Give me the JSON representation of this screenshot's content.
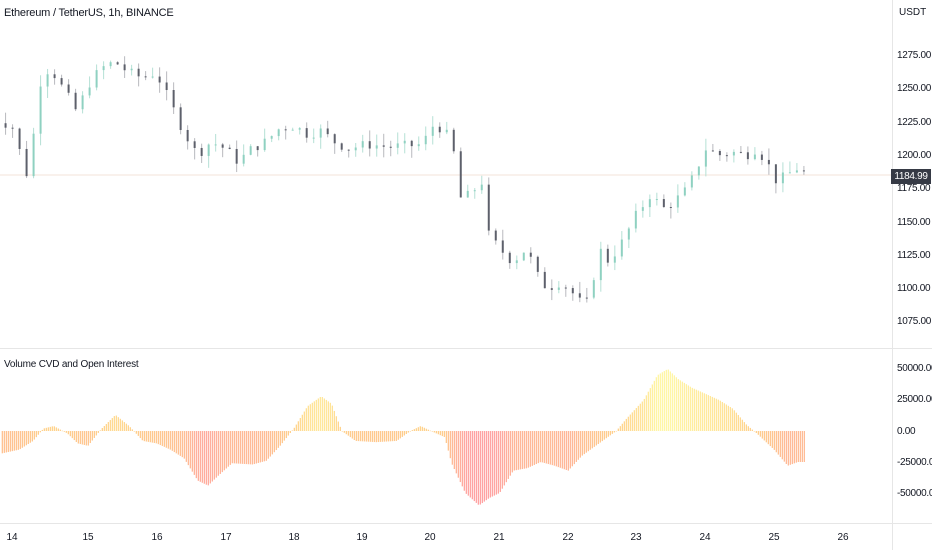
{
  "header": {
    "title": "Ethereum / TetherUS, 1h, BINANCE",
    "currency": "USDT"
  },
  "price_axis": {
    "ticks": [
      "1275.00",
      "1250.00",
      "1225.00",
      "1200.00",
      "1175.00",
      "1150.00",
      "1125.00",
      "1100.00",
      "1075.00"
    ],
    "current_price": "1184.99"
  },
  "indicator": {
    "title": "Volume CVD and Open Interest",
    "ticks": [
      "50000.00",
      "25000.00",
      "0.00",
      "-25000.00",
      "-50000.00"
    ]
  },
  "time_axis": {
    "labels": [
      "14",
      "15",
      "16",
      "17",
      "18",
      "19",
      "20",
      "21",
      "22",
      "23",
      "24",
      "25",
      "26"
    ]
  },
  "colors": {
    "up_candle": "#8fd1c1",
    "down_candle": "#5d606b",
    "hist_positive": "#fff59d",
    "hist_mid": "#ffcc80",
    "hist_negative": "#ff9a9a",
    "price_tag_bg": "#363a45"
  },
  "chart_data": [
    {
      "type": "candlestick",
      "title": "Ethereum / TetherUS, 1h, BINANCE",
      "ylabel": "USDT",
      "ylim": [
        1062,
        1300
      ],
      "x_labels": [
        "14",
        "15",
        "16",
        "17",
        "18",
        "19",
        "20",
        "21",
        "22",
        "23",
        "24",
        "25",
        "26"
      ],
      "last_price": 1184.99,
      "close_path": [
        [
          13.6,
          1230
        ],
        [
          14.0,
          1222
        ],
        [
          14.1,
          1205
        ],
        [
          14.25,
          1180
        ],
        [
          14.35,
          1235
        ],
        [
          14.45,
          1265
        ],
        [
          14.6,
          1262
        ],
        [
          14.8,
          1245
        ],
        [
          14.95,
          1232
        ],
        [
          15.1,
          1252
        ],
        [
          15.3,
          1265
        ],
        [
          15.5,
          1270
        ],
        [
          15.7,
          1262
        ],
        [
          15.9,
          1258
        ],
        [
          16.1,
          1262
        ],
        [
          16.3,
          1240
        ],
        [
          16.5,
          1218
        ],
        [
          16.7,
          1200
        ],
        [
          16.9,
          1210
        ],
        [
          17.1,
          1205
        ],
        [
          17.3,
          1195
        ],
        [
          17.5,
          1205
        ],
        [
          17.7,
          1210
        ],
        [
          17.9,
          1220
        ],
        [
          18.1,
          1222
        ],
        [
          18.3,
          1216
        ],
        [
          18.5,
          1218
        ],
        [
          18.7,
          1210
        ],
        [
          18.9,
          1205
        ],
        [
          19.2,
          1208
        ],
        [
          19.5,
          1206
        ],
        [
          19.8,
          1207
        ],
        [
          20.0,
          1208
        ],
        [
          20.1,
          1222
        ],
        [
          20.3,
          1220
        ],
        [
          20.45,
          1200
        ],
        [
          20.55,
          1165
        ],
        [
          20.7,
          1172
        ],
        [
          20.85,
          1180
        ],
        [
          20.95,
          1140
        ],
        [
          21.1,
          1130
        ],
        [
          21.3,
          1120
        ],
        [
          21.5,
          1130
        ],
        [
          21.65,
          1110
        ],
        [
          21.8,
          1100
        ],
        [
          22.0,
          1105
        ],
        [
          22.2,
          1095
        ],
        [
          22.35,
          1085
        ],
        [
          22.45,
          1100
        ],
        [
          22.55,
          1130
        ],
        [
          22.7,
          1120
        ],
        [
          22.9,
          1135
        ],
        [
          23.1,
          1155
        ],
        [
          23.3,
          1170
        ],
        [
          23.5,
          1160
        ],
        [
          23.65,
          1165
        ],
        [
          23.8,
          1172
        ],
        [
          23.95,
          1185
        ],
        [
          24.1,
          1205
        ],
        [
          24.3,
          1200
        ],
        [
          24.5,
          1202
        ],
        [
          24.7,
          1200
        ],
        [
          24.85,
          1205
        ],
        [
          25.0,
          1195
        ],
        [
          25.15,
          1180
        ],
        [
          25.3,
          1185
        ],
        [
          25.5,
          1192
        ],
        [
          25.55,
          1186
        ]
      ]
    },
    {
      "type": "bar",
      "title": "Volume CVD and Open Interest",
      "ylim": [
        -62000,
        62000
      ],
      "ticks": [
        50000,
        25000,
        0,
        -25000,
        -50000
      ],
      "x_labels": [
        "14",
        "15",
        "16",
        "17",
        "18",
        "19",
        "20",
        "21",
        "22",
        "23",
        "24",
        "25",
        "26"
      ],
      "value_path": [
        [
          13.85,
          -18000
        ],
        [
          14.1,
          -15000
        ],
        [
          14.3,
          -8000
        ],
        [
          14.45,
          2000
        ],
        [
          14.6,
          4000
        ],
        [
          14.8,
          -2000
        ],
        [
          14.95,
          -10000
        ],
        [
          15.1,
          -12000
        ],
        [
          15.3,
          2000
        ],
        [
          15.5,
          13000
        ],
        [
          15.7,
          4000
        ],
        [
          15.9,
          -8000
        ],
        [
          16.1,
          -10000
        ],
        [
          16.3,
          -15000
        ],
        [
          16.5,
          -22000
        ],
        [
          16.7,
          -40000
        ],
        [
          16.85,
          -44000
        ],
        [
          17.0,
          -36000
        ],
        [
          17.2,
          -26000
        ],
        [
          17.5,
          -27000
        ],
        [
          17.7,
          -24000
        ],
        [
          17.9,
          -12000
        ],
        [
          18.1,
          2000
        ],
        [
          18.3,
          20000
        ],
        [
          18.5,
          28000
        ],
        [
          18.65,
          22000
        ],
        [
          18.8,
          0
        ],
        [
          19.0,
          -8000
        ],
        [
          19.3,
          -9000
        ],
        [
          19.6,
          -8000
        ],
        [
          19.8,
          0
        ],
        [
          19.95,
          4000
        ],
        [
          20.1,
          0
        ],
        [
          20.3,
          -5000
        ],
        [
          20.4,
          -26000
        ],
        [
          20.6,
          -50000
        ],
        [
          20.8,
          -60000
        ],
        [
          20.95,
          -54000
        ],
        [
          21.1,
          -50000
        ],
        [
          21.3,
          -32000
        ],
        [
          21.5,
          -30000
        ],
        [
          21.7,
          -25000
        ],
        [
          21.9,
          -28000
        ],
        [
          22.1,
          -32000
        ],
        [
          22.3,
          -20000
        ],
        [
          22.6,
          -8000
        ],
        [
          22.8,
          0
        ],
        [
          22.95,
          10000
        ],
        [
          23.2,
          25000
        ],
        [
          23.4,
          45000
        ],
        [
          23.55,
          50000
        ],
        [
          23.7,
          42000
        ],
        [
          23.9,
          35000
        ],
        [
          24.1,
          30000
        ],
        [
          24.3,
          25000
        ],
        [
          24.5,
          18000
        ],
        [
          24.7,
          5000
        ],
        [
          24.85,
          -2000
        ],
        [
          25.1,
          -15000
        ],
        [
          25.3,
          -28000
        ],
        [
          25.45,
          -25000
        ],
        [
          25.55,
          -25000
        ]
      ]
    }
  ]
}
